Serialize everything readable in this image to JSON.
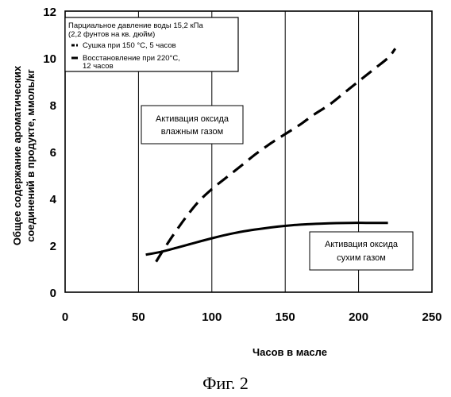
{
  "chart_data": {
    "type": "line",
    "title": "",
    "xlabel": "Часов в масле",
    "ylabel_lines": [
      "Общее содержание ароматических",
      "соединений в продукте, ммоль/кг"
    ],
    "xlim": [
      0,
      250
    ],
    "ylim": [
      0,
      12
    ],
    "xticks": [
      "0",
      "50",
      "100",
      "150",
      "200",
      "250"
    ],
    "yticks": [
      "0",
      "2",
      "4",
      "6",
      "8",
      "10",
      "12"
    ],
    "grid": "vertical",
    "legend": {
      "position": "top-left",
      "header_lines": [
        "Парциальное давление воды 15,2 кПа",
        "(2,2 фунтов на кв. дюйм)"
      ],
      "entries": [
        {
          "lines": [
            "Сушка при 150 °C, 5 часов"
          ]
        },
        {
          "lines": [
            "Восстановление при 220°C,",
            "12 часов"
          ]
        }
      ]
    },
    "series": [
      {
        "style": "dashed",
        "x": [
          62,
          70,
          80,
          90,
          100,
          110,
          120,
          130,
          140,
          150,
          160,
          170,
          180,
          190,
          200,
          210,
          220,
          225
        ],
        "y": [
          1.3,
          2.1,
          3.0,
          3.8,
          4.4,
          4.9,
          5.4,
          5.9,
          6.35,
          6.75,
          7.15,
          7.6,
          8.0,
          8.5,
          9.0,
          9.5,
          10.0,
          10.4
        ]
      },
      {
        "style": "solid",
        "x": [
          55,
          65,
          75,
          85,
          95,
          105,
          115,
          125,
          135,
          145,
          155,
          165,
          175,
          185,
          195,
          205,
          215,
          220
        ],
        "y": [
          1.6,
          1.72,
          1.88,
          2.05,
          2.22,
          2.38,
          2.52,
          2.63,
          2.72,
          2.8,
          2.86,
          2.9,
          2.93,
          2.95,
          2.96,
          2.96,
          2.96,
          2.96
        ]
      }
    ],
    "annotations": [
      {
        "lines": [
          "Активация оксида",
          "влажным газом"
        ]
      },
      {
        "lines": [
          "Активация оксида",
          "сухим газом"
        ]
      }
    ]
  },
  "caption": "Фиг. 2"
}
